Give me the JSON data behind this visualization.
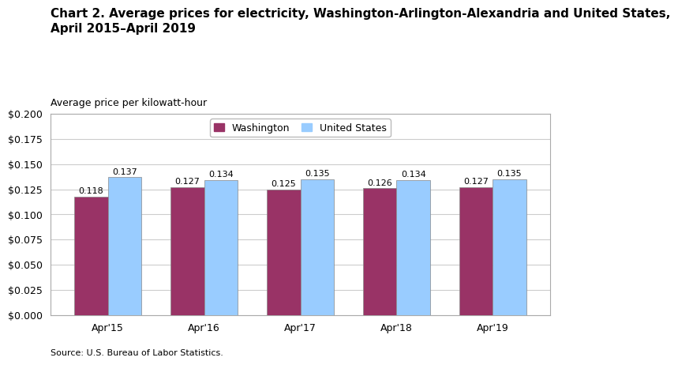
{
  "title_line1": "Chart 2. Average prices for electricity, Washington-Arlington-Alexandria and United States,",
  "title_line2": "April 2015–April 2019",
  "ylabel": "Average price per kilowatt-hour",
  "source": "Source: U.S. Bureau of Labor Statistics.",
  "categories": [
    "Apr'15",
    "Apr'16",
    "Apr'17",
    "Apr'18",
    "Apr'19"
  ],
  "washington_values": [
    0.118,
    0.127,
    0.125,
    0.126,
    0.127
  ],
  "us_values": [
    0.137,
    0.134,
    0.135,
    0.134,
    0.135
  ],
  "washington_color": "#993366",
  "us_color": "#99CCFF",
  "bar_edge_color": "#888888",
  "ylim": [
    0,
    0.2
  ],
  "yticks": [
    0.0,
    0.025,
    0.05,
    0.075,
    0.1,
    0.125,
    0.15,
    0.175,
    0.2
  ],
  "ytick_labels": [
    "$0.000",
    "$0.025",
    "$0.050",
    "$0.075",
    "$0.100",
    "$0.125",
    "$0.150",
    "$0.175",
    "$0.200"
  ],
  "legend_washington": "Washington",
  "legend_us": "United States",
  "bar_width": 0.35,
  "annotation_fontsize": 8,
  "title_fontsize": 11,
  "axis_label_fontsize": 9,
  "tick_fontsize": 9,
  "legend_fontsize": 9,
  "source_fontsize": 8,
  "grid_color": "#cccccc"
}
